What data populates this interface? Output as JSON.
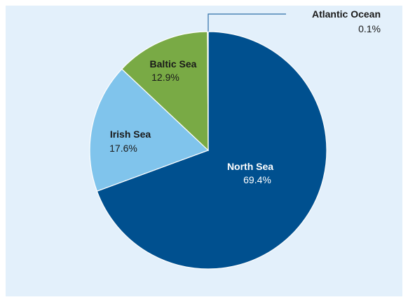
{
  "chart_data": {
    "type": "pie",
    "slices": [
      {
        "label": "North Sea",
        "value_text": "69.4%",
        "value": 69.4,
        "color": "#00508f",
        "text_color": "#ffffff"
      },
      {
        "label": "Irish Sea",
        "value_text": "17.6%",
        "value": 17.6,
        "color": "#80c4ec",
        "text_color": "#1a1a1a"
      },
      {
        "label": "Baltic Sea",
        "value_text": "12.9%",
        "value": 12.9,
        "color": "#79aa45",
        "text_color": "#1a1a1a"
      },
      {
        "label": "Atlantic Ocean",
        "value_text": "0.1%",
        "value": 0.1,
        "color": "#00508f",
        "text_color": "#1a1a1a"
      }
    ],
    "start_angle_deg": 0,
    "direction": "clockwise",
    "background": "#e3f0fb",
    "leader_color": "#2f6fa8"
  }
}
